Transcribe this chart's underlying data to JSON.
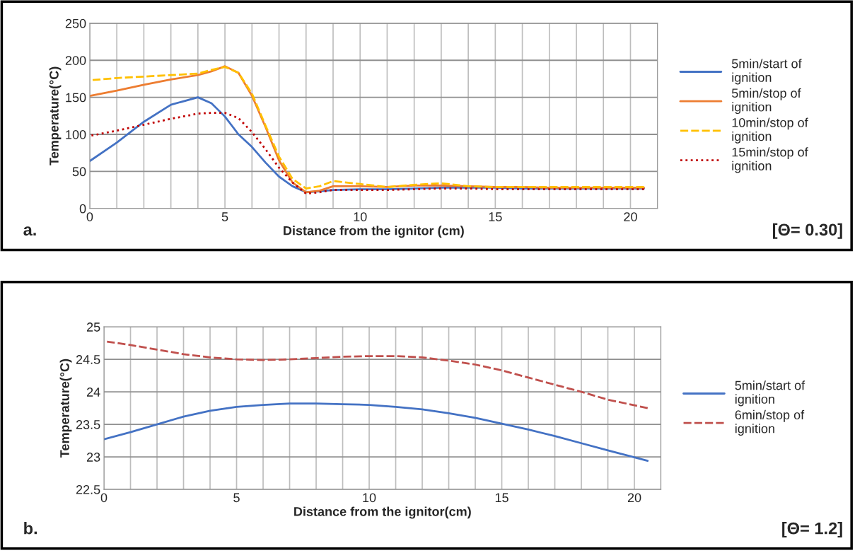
{
  "chart_data": [
    {
      "type": "line",
      "xlabel": "Distance from the ignitor (cm)",
      "ylabel": "Temperature(°C)",
      "xlim": [
        0,
        21
      ],
      "xticks": [
        0,
        5,
        10,
        15,
        20
      ],
      "ylim": [
        0,
        250
      ],
      "yticks": [
        0,
        50,
        100,
        150,
        200,
        250
      ],
      "grid": true,
      "legend": "right",
      "annotations": [
        "a.",
        "[Θ= 0.30]"
      ],
      "x": [
        0,
        1,
        2,
        3,
        4,
        4.5,
        5,
        5.5,
        6,
        6.5,
        7,
        7.5,
        8,
        8.5,
        9,
        10,
        11,
        12,
        13,
        14,
        15,
        16,
        17,
        18,
        19,
        20.5
      ],
      "series": [
        {
          "name": "5min/start of ignition",
          "color": "#4472c4",
          "line_style": "solid",
          "values": [
            64,
            89,
            117,
            140,
            150,
            142,
            124,
            100,
            83,
            62,
            43,
            30,
            22,
            23,
            25,
            26,
            26,
            27,
            28,
            28,
            28,
            27,
            27,
            27,
            27,
            27
          ]
        },
        {
          "name": "5min/stop of ignition",
          "color": "#ed7d31",
          "line_style": "solid",
          "values": [
            152,
            159,
            167,
            174,
            180,
            185,
            192,
            183,
            152,
            110,
            65,
            35,
            22,
            24,
            30,
            30,
            29,
            31,
            31,
            30,
            29,
            29,
            28,
            28,
            28,
            28
          ]
        },
        {
          "name": "10min/stop of ignition",
          "color": "#ffc000",
          "line_style": "dashed",
          "values": [
            173,
            176,
            178,
            180,
            182,
            187,
            191,
            183,
            155,
            112,
            70,
            40,
            27,
            30,
            37,
            33,
            29,
            32,
            34,
            30,
            29,
            29,
            29,
            29,
            29,
            29
          ]
        },
        {
          "name": "15min/stop of ignition",
          "color": "#c00000",
          "line_style": "dotted",
          "values": [
            98,
            105,
            113,
            121,
            128,
            129,
            129,
            122,
            103,
            80,
            55,
            35,
            20,
            22,
            25,
            25,
            25,
            26,
            27,
            27,
            26,
            26,
            26,
            26,
            26,
            26
          ]
        }
      ]
    },
    {
      "type": "line",
      "xlabel": "Distance from the ignitor(cm)",
      "ylabel": "Temperature(°C)",
      "xlim": [
        0,
        21
      ],
      "xticks": [
        0,
        5,
        10,
        15,
        20
      ],
      "ylim": [
        22.5,
        25
      ],
      "yticks": [
        22.5,
        23,
        23.5,
        24,
        24.5,
        25
      ],
      "grid": true,
      "legend": "right",
      "annotations": [
        "b.",
        "[Θ= 1.2]"
      ],
      "x": [
        0,
        1,
        2,
        3,
        4,
        5,
        6,
        7,
        8,
        9,
        10,
        11,
        12,
        13,
        14,
        15,
        16,
        17,
        18,
        19,
        20.5
      ],
      "series": [
        {
          "name": "5min/start of ignition",
          "color": "#4472c4",
          "line_style": "solid",
          "values": [
            23.27,
            23.38,
            23.5,
            23.62,
            23.71,
            23.77,
            23.8,
            23.82,
            23.82,
            23.81,
            23.8,
            23.77,
            23.73,
            23.67,
            23.6,
            23.51,
            23.42,
            23.32,
            23.21,
            23.1,
            22.94
          ]
        },
        {
          "name": "6min/stop of ignition",
          "color": "#c0504d",
          "line_style": "dashed",
          "values": [
            24.78,
            24.72,
            24.65,
            24.58,
            24.53,
            24.5,
            24.49,
            24.5,
            24.52,
            24.54,
            24.55,
            24.55,
            24.53,
            24.48,
            24.42,
            24.33,
            24.22,
            24.11,
            24.0,
            23.88,
            23.75
          ]
        }
      ]
    }
  ]
}
